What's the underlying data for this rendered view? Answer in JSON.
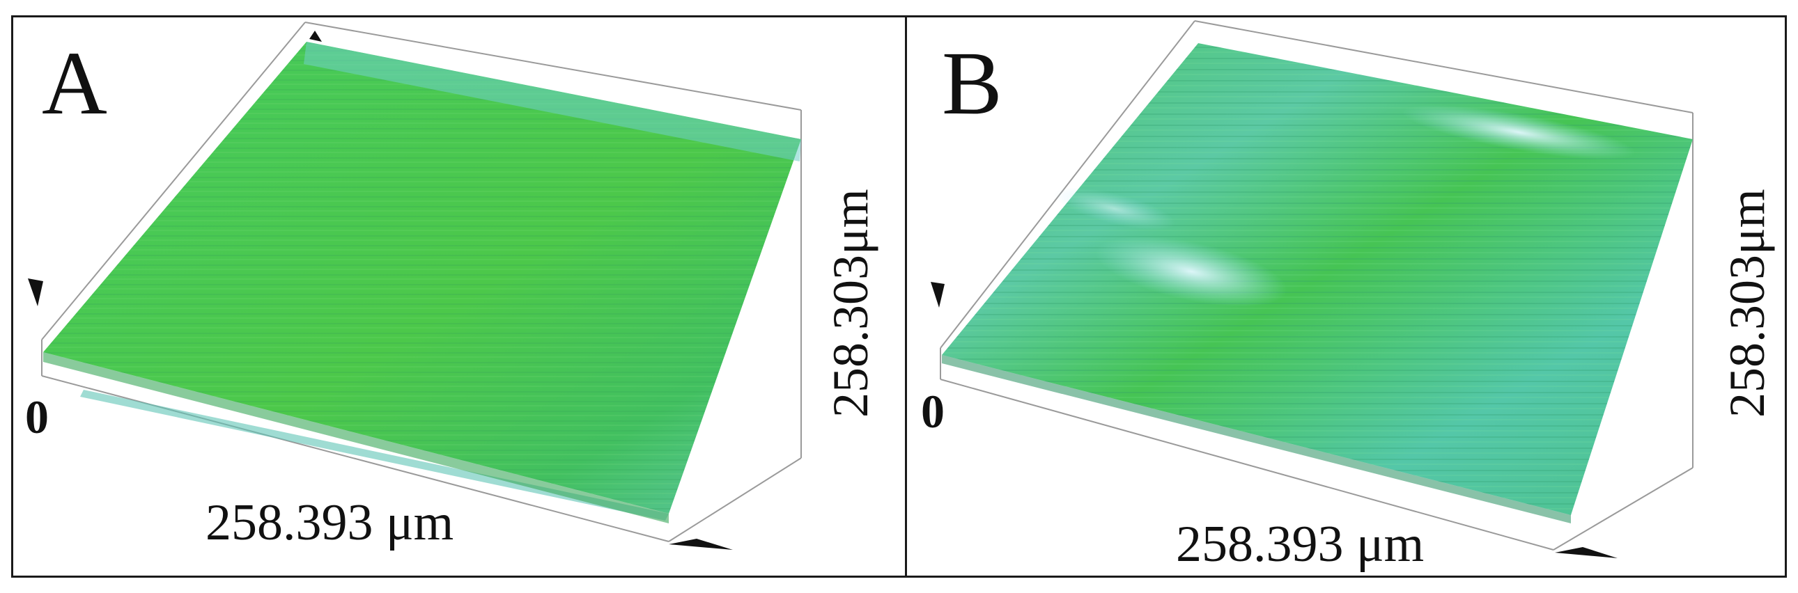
{
  "panels": [
    {
      "label": "A",
      "origin_label": "0",
      "x_axis_label": "258.393 μm",
      "y_axis_label": "258.303μm",
      "surface_colors": {
        "base": "#3fc25a",
        "mid": "#52cc4a",
        "highlight": "#78d9e8"
      }
    },
    {
      "label": "B",
      "origin_label": "0",
      "x_axis_label": "258.393 μm",
      "y_axis_label": "258.303μm",
      "surface_colors": {
        "base": "#3fbf6a",
        "mid": "#4ec7a0",
        "highlight": "#c8f0ff"
      }
    }
  ],
  "colors": {
    "frame": "#1a1a1a",
    "box_lines": "#9a9a9a",
    "background": "#ffffff"
  }
}
